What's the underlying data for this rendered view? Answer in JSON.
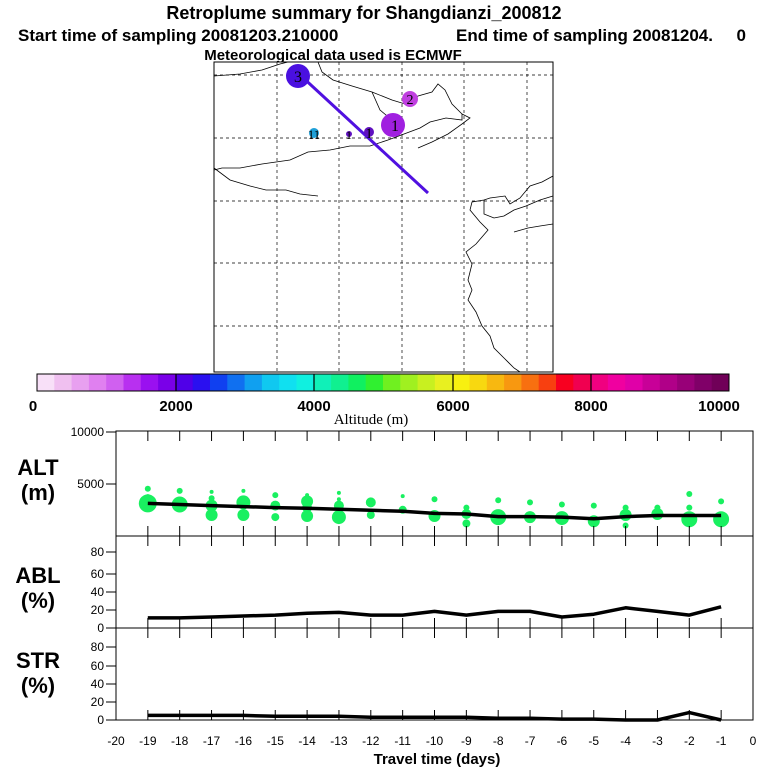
{
  "header": {
    "title": "Retroplume summary for Shangdianzi_200812",
    "start_text": "Start time of sampling 20081203.210000",
    "end_text": "End time of sampling 20081204.",
    "end_suffix": "0",
    "met_text": "Meteorological data used is ECMWF"
  },
  "map": {
    "markers": [
      {
        "label": "3",
        "color": "#4a10e0"
      },
      {
        "label": "2",
        "color": "#c040e0"
      },
      {
        "label": "1",
        "color": "#a020e0"
      },
      {
        "label": "11",
        "color": "#1fa0d8"
      },
      {
        "label": "1",
        "color": "#6010c0"
      },
      {
        "label": "1",
        "color": "#6010c0"
      }
    ]
  },
  "colorbar": {
    "title": "Altitude (m)",
    "tick_labels": [
      "0",
      "2000",
      "4000",
      "6000",
      "8000",
      "10000"
    ],
    "colors": [
      "#f8e0f8",
      "#f0c0f0",
      "#e8a0f0",
      "#e080f0",
      "#d060f0",
      "#b830f0",
      "#9a10f0",
      "#7a00e8",
      "#5000e8",
      "#2a10f0",
      "#1040f0",
      "#1070f0",
      "#10a0f0",
      "#10c8f0",
      "#10e0f0",
      "#10f0e0",
      "#10f0b8",
      "#10f090",
      "#10f060",
      "#30f030",
      "#70f020",
      "#a0f020",
      "#c8f020",
      "#e8f020",
      "#f8f010",
      "#f8d810",
      "#f8b810",
      "#f89810",
      "#f87010",
      "#f84010",
      "#f80020",
      "#f00050",
      "#f00080",
      "#f000a0",
      "#e000a8",
      "#c80098",
      "#b00088",
      "#980078",
      "#800068",
      "#700058"
    ]
  },
  "chart_data": [
    {
      "type": "line",
      "panel": "ALT",
      "ylabel": "ALT\n(m)",
      "ylim": [
        0,
        10000
      ],
      "y_ticks": [
        "10000",
        "5000"
      ],
      "x": [
        -19,
        -18,
        -17,
        -16,
        -15,
        -14,
        -13,
        -12,
        -11,
        -10,
        -9,
        -8,
        -7,
        -6,
        -5,
        -4,
        -3,
        -2,
        -1
      ],
      "series": [
        {
          "name": "mean altitude",
          "values": [
            3100,
            3000,
            2900,
            2800,
            2700,
            2650,
            2550,
            2450,
            2350,
            2150,
            2100,
            1850,
            1850,
            1800,
            1650,
            1850,
            1950,
            1950,
            1950
          ]
        }
      ],
      "scatter": {
        "color": "#19f060",
        "points": [
          {
            "x": -19,
            "y": 3100,
            "s": 9
          },
          {
            "x": -19,
            "y": 4500,
            "s": 3
          },
          {
            "x": -19,
            "y": 3800,
            "s": 2
          },
          {
            "x": -18,
            "y": 3000,
            "s": 8
          },
          {
            "x": -18,
            "y": 4300,
            "s": 3
          },
          {
            "x": -17,
            "y": 2900,
            "s": 6
          },
          {
            "x": -17,
            "y": 2000,
            "s": 6
          },
          {
            "x": -17,
            "y": 4200,
            "s": 2
          },
          {
            "x": -17,
            "y": 3600,
            "s": 3
          },
          {
            "x": -16,
            "y": 3200,
            "s": 7
          },
          {
            "x": -16,
            "y": 2000,
            "s": 6
          },
          {
            "x": -16,
            "y": 4300,
            "s": 2
          },
          {
            "x": -15,
            "y": 2900,
            "s": 5
          },
          {
            "x": -15,
            "y": 1800,
            "s": 4
          },
          {
            "x": -15,
            "y": 3900,
            "s": 3
          },
          {
            "x": -14,
            "y": 3300,
            "s": 6
          },
          {
            "x": -14,
            "y": 1900,
            "s": 6
          },
          {
            "x": -14,
            "y": 2700,
            "s": 5
          },
          {
            "x": -14,
            "y": 3900,
            "s": 2
          },
          {
            "x": -13,
            "y": 2900,
            "s": 5
          },
          {
            "x": -13,
            "y": 1800,
            "s": 7
          },
          {
            "x": -13,
            "y": 4100,
            "s": 2
          },
          {
            "x": -13,
            "y": 3500,
            "s": 2
          },
          {
            "x": -12,
            "y": 3200,
            "s": 5
          },
          {
            "x": -12,
            "y": 2000,
            "s": 4
          },
          {
            "x": -11,
            "y": 2500,
            "s": 4
          },
          {
            "x": -11,
            "y": 3800,
            "s": 2
          },
          {
            "x": -10,
            "y": 1900,
            "s": 6
          },
          {
            "x": -10,
            "y": 3500,
            "s": 3
          },
          {
            "x": -9,
            "y": 2100,
            "s": 5
          },
          {
            "x": -9,
            "y": 1200,
            "s": 4
          },
          {
            "x": -9,
            "y": 2700,
            "s": 3
          },
          {
            "x": -8,
            "y": 1800,
            "s": 8
          },
          {
            "x": -8,
            "y": 3400,
            "s": 3
          },
          {
            "x": -7,
            "y": 1800,
            "s": 6
          },
          {
            "x": -7,
            "y": 3200,
            "s": 3
          },
          {
            "x": -6,
            "y": 1700,
            "s": 7
          },
          {
            "x": -6,
            "y": 3000,
            "s": 3
          },
          {
            "x": -5,
            "y": 1400,
            "s": 6
          },
          {
            "x": -5,
            "y": 2900,
            "s": 3
          },
          {
            "x": -4,
            "y": 2000,
            "s": 6
          },
          {
            "x": -4,
            "y": 1000,
            "s": 3
          },
          {
            "x": -4,
            "y": 2700,
            "s": 3
          },
          {
            "x": -3,
            "y": 2100,
            "s": 6
          },
          {
            "x": -3,
            "y": 2700,
            "s": 3
          },
          {
            "x": -2,
            "y": 1600,
            "s": 8
          },
          {
            "x": -2,
            "y": 4000,
            "s": 3
          },
          {
            "x": -2,
            "y": 2700,
            "s": 3
          },
          {
            "x": -1,
            "y": 1600,
            "s": 8
          },
          {
            "x": -1,
            "y": 3300,
            "s": 3
          }
        ]
      }
    },
    {
      "type": "line",
      "panel": "ABL",
      "ylabel": "ABL\n(%)",
      "ylim": [
        0,
        100
      ],
      "y_ticks": [
        "80",
        "60",
        "40",
        "20",
        "0"
      ],
      "x": [
        -19,
        -18,
        -17,
        -16,
        -15,
        -14,
        -13,
        -12,
        -11,
        -10,
        -9,
        -8,
        -7,
        -6,
        -5,
        -4,
        -3,
        -2,
        -1
      ],
      "series": [
        {
          "name": "ABL fraction",
          "values": [
            11,
            11,
            12,
            13,
            14,
            16,
            17,
            14,
            14,
            18,
            14,
            18,
            18,
            12,
            15,
            22,
            18,
            14,
            23
          ]
        }
      ]
    },
    {
      "type": "line",
      "panel": "STR",
      "ylabel": "STR\n(%)",
      "ylim": [
        0,
        100
      ],
      "y_ticks": [
        "80",
        "60",
        "40",
        "20",
        "0"
      ],
      "x": [
        -19,
        -18,
        -17,
        -16,
        -15,
        -14,
        -13,
        -12,
        -11,
        -10,
        -9,
        -8,
        -7,
        -6,
        -5,
        -4,
        -3,
        -2,
        -1
      ],
      "series": [
        {
          "name": "STR fraction",
          "values": [
            5,
            5,
            5,
            5,
            4,
            4,
            4,
            3,
            3,
            3,
            3,
            2,
            2,
            1,
            1,
            0,
            0,
            8,
            0
          ]
        }
      ]
    }
  ],
  "xaxis": {
    "title": "Travel time (days)",
    "tick_labels": [
      "-20",
      "-19",
      "-18",
      "-17",
      "-16",
      "-15",
      "-14",
      "-13",
      "-12",
      "-11",
      "-10",
      "-9",
      "-8",
      "-7",
      "-6",
      "-5",
      "-4",
      "-3",
      "-2",
      "-1",
      "0"
    ]
  }
}
